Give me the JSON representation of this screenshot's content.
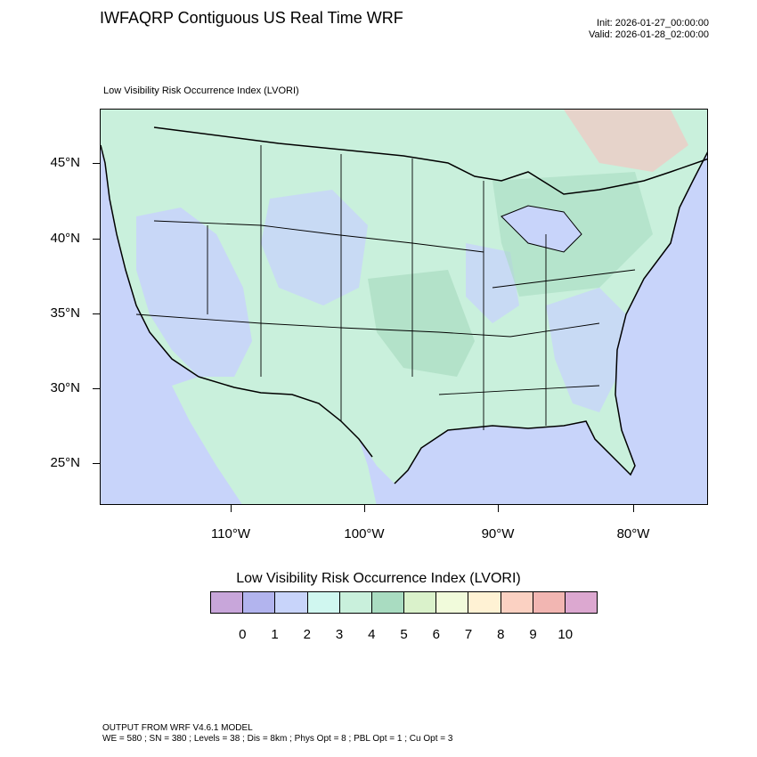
{
  "header": {
    "title": "IWFAQRP Contiguous US Real Time WRF",
    "init": "Init: 2026-01-27_00:00:00",
    "valid": "Valid: 2026-01-28_02:00:00"
  },
  "map": {
    "subtitle": "Low Visibility Risk Occurrence Index   (LVORI)",
    "lat_labels": [
      "45°N",
      "40°N",
      "35°N",
      "30°N",
      "25°N"
    ],
    "lon_labels": [
      "110°W",
      "100°W",
      "90°W",
      "80°W"
    ],
    "colors": {
      "ocean": "#c8d4fa",
      "land": "#c9f0dc",
      "high_terrain": "#f2c6c2",
      "low_vis": "#c8d4fa",
      "moderate": "#a9dcc1"
    }
  },
  "legend": {
    "title": "Low Visibility Risk Occurrence Index  (LVORI)",
    "labels": [
      "0",
      "1",
      "2",
      "3",
      "4",
      "5",
      "6",
      "7",
      "8",
      "9",
      "10"
    ],
    "colors": [
      "#c8a6da",
      "#b2b4ee",
      "#c8d4fa",
      "#d0f7f0",
      "#c9f0dc",
      "#a9dcc1",
      "#daf2cb",
      "#f1fbdb",
      "#fff2d4",
      "#fbd1c2",
      "#f2b6b2",
      "#dca8d0"
    ]
  },
  "footer": {
    "line1": "OUTPUT FROM WRF V4.6.1 MODEL",
    "line2": "WE = 580 ; SN = 380 ; Levels = 38 ; Dis = 8km ; Phys Opt = 8 ; PBL Opt = 1 ; Cu Opt = 3"
  }
}
